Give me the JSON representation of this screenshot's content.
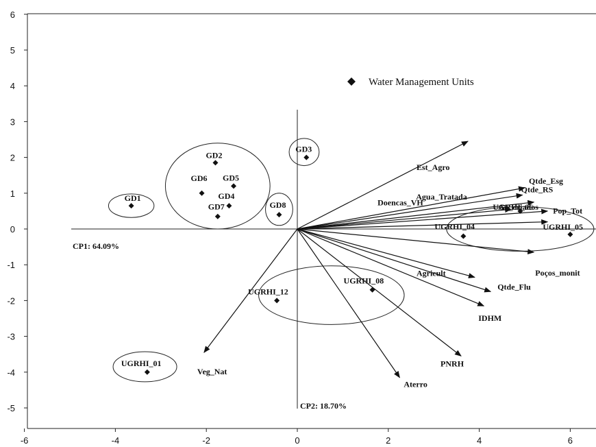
{
  "chart_data": {
    "type": "scatter",
    "subtype": "pca-biplot",
    "xlim": [
      -6,
      6.6
    ],
    "ylim": [
      -5.6,
      6
    ],
    "x_ticks": [
      "-6",
      "-4",
      "-2",
      "0",
      "2",
      "4",
      "6"
    ],
    "y_ticks": [
      "6",
      "5",
      "4",
      "3",
      "2",
      "1",
      "0",
      "-1",
      "-2",
      "-3",
      "-4",
      "-5"
    ],
    "grid": false,
    "axis1_label": "CP1: 64.09%",
    "axis2_label": "CP2: 18.70%",
    "legend": {
      "label": "Water Management Units",
      "placement": "top-center"
    },
    "points": [
      {
        "label": "GD1",
        "x": -3.65,
        "y": 0.65
      },
      {
        "label": "GD2",
        "x": -1.8,
        "y": 1.85
      },
      {
        "label": "GD6",
        "x": -2.1,
        "y": 1.0
      },
      {
        "label": "GD5",
        "x": -1.4,
        "y": 1.2
      },
      {
        "label": "GD4",
        "x": -1.5,
        "y": 0.65
      },
      {
        "label": "GD7",
        "x": -1.75,
        "y": 0.35
      },
      {
        "label": "GD8",
        "x": -0.4,
        "y": 0.4
      },
      {
        "label": "GD3",
        "x": 0.2,
        "y": 2.0
      },
      {
        "label": "UGRHI_01",
        "x": -3.3,
        "y": -4.0
      },
      {
        "label": "UGRHI_12",
        "x": -0.45,
        "y": -2.0
      },
      {
        "label": "UGRHI_08",
        "x": 1.65,
        "y": -1.7
      },
      {
        "label": "UGRHI_04",
        "x": 3.65,
        "y": -0.2
      },
      {
        "label": "UGRHI_05",
        "x": 6.0,
        "y": -0.15
      },
      {
        "label": "UGRHI_06",
        "x": 4.9,
        "y": 0.5
      }
    ],
    "vectors": [
      {
        "label": "Est_Agro",
        "x": 3.75,
        "y": 2.45
      },
      {
        "label": "Qtde_Esg",
        "x": 5.0,
        "y": 1.15
      },
      {
        "label": "Qtde_RS",
        "x": 4.95,
        "y": 0.95
      },
      {
        "label": "Agua_Tratada",
        "x": 5.2,
        "y": 0.75
      },
      {
        "label": "An_criados",
        "x": 5.5,
        "y": 0.5
      },
      {
        "label": "Doencas_VH",
        "x": 4.7,
        "y": 0.55
      },
      {
        "label": "Pop_Tot",
        "x": 5.5,
        "y": 0.2
      },
      {
        "label": "Poços_monit",
        "x": 5.2,
        "y": -0.65
      },
      {
        "label": "Agricult",
        "x": 3.9,
        "y": -1.35
      },
      {
        "label": "Qtde_Flu",
        "x": 4.25,
        "y": -1.75
      },
      {
        "label": "IDHM",
        "x": 4.1,
        "y": -2.15
      },
      {
        "label": "PNRH",
        "x": 3.6,
        "y": -3.55
      },
      {
        "label": "Aterro",
        "x": 2.25,
        "y": -4.15
      },
      {
        "label": "Veg_Nat",
        "x": -2.05,
        "y": -3.45
      }
    ],
    "ellipses": [
      {
        "group": "GD1",
        "cx": -3.65,
        "cy": 0.65,
        "rx": 0.5,
        "ry": 0.33
      },
      {
        "group": "GD2-GD7",
        "cx": -1.75,
        "cy": 1.2,
        "rx": 1.15,
        "ry": 1.2
      },
      {
        "group": "GD8",
        "cx": -0.4,
        "cy": 0.55,
        "rx": 0.3,
        "ry": 0.45
      },
      {
        "group": "GD3",
        "cx": 0.15,
        "cy": 2.15,
        "rx": 0.33,
        "ry": 0.38
      },
      {
        "group": "UGRHI_01",
        "cx": -3.35,
        "cy": -3.85,
        "rx": 0.7,
        "ry": 0.42
      },
      {
        "group": "UGRHI_08_12",
        "cx": 0.75,
        "cy": -1.85,
        "rx": 1.6,
        "ry": 0.82
      },
      {
        "group": "UGRHI_04_05_06",
        "cx": 4.9,
        "cy": 0.0,
        "rx": 1.62,
        "ry": 0.62
      }
    ]
  }
}
